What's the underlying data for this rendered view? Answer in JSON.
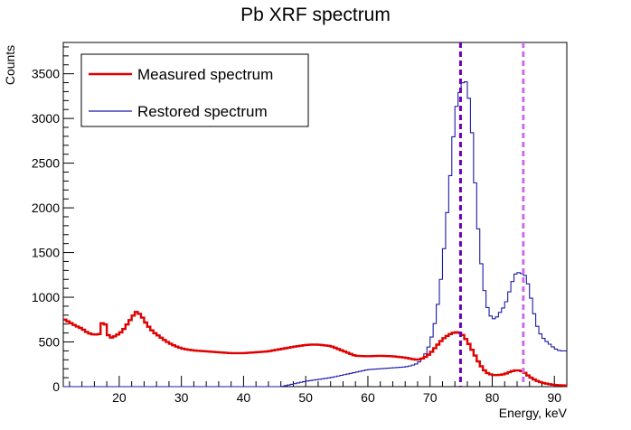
{
  "chart_data": {
    "type": "line",
    "title": "Pb XRF spectrum",
    "xlabel": "Energy, keV",
    "ylabel": "Counts",
    "xlim": [
      11,
      92
    ],
    "ylim": [
      0,
      3850
    ],
    "xticks": [
      20,
      30,
      40,
      50,
      60,
      70,
      80,
      90
    ],
    "yticks": [
      0,
      500,
      1000,
      1500,
      2000,
      2500,
      3000,
      3500
    ],
    "grid": false,
    "legend_position": "top-left",
    "series": [
      {
        "name": "Measured spectrum",
        "color": "#e00000",
        "style": "step-thick",
        "points": [
          [
            11,
            760
          ],
          [
            12,
            720
          ],
          [
            13,
            680
          ],
          [
            14,
            650
          ],
          [
            15,
            600
          ],
          [
            16,
            580
          ],
          [
            17,
            590
          ],
          [
            17.4,
            780
          ],
          [
            17.9,
            660
          ],
          [
            18.4,
            540
          ],
          [
            19.5,
            570
          ],
          [
            20.5,
            620
          ],
          [
            21.5,
            720
          ],
          [
            22.3,
            800
          ],
          [
            22.8,
            840
          ],
          [
            23.5,
            800
          ],
          [
            24.5,
            690
          ],
          [
            25.5,
            610
          ],
          [
            26.5,
            560
          ],
          [
            27.5,
            510
          ],
          [
            28.5,
            470
          ],
          [
            29.5,
            440
          ],
          [
            30.5,
            420
          ],
          [
            32,
            405
          ],
          [
            34,
            395
          ],
          [
            36,
            385
          ],
          [
            38,
            375
          ],
          [
            40,
            375
          ],
          [
            42,
            385
          ],
          [
            44,
            395
          ],
          [
            46,
            420
          ],
          [
            48,
            445
          ],
          [
            50,
            465
          ],
          [
            51,
            470
          ],
          [
            52,
            470
          ],
          [
            54,
            455
          ],
          [
            56,
            400
          ],
          [
            58,
            345
          ],
          [
            60,
            340
          ],
          [
            62,
            345
          ],
          [
            64,
            340
          ],
          [
            66,
            325
          ],
          [
            67,
            310
          ],
          [
            68,
            300
          ],
          [
            69,
            320
          ],
          [
            70,
            370
          ],
          [
            71,
            450
          ],
          [
            72,
            530
          ],
          [
            73,
            580
          ],
          [
            74,
            610
          ],
          [
            75,
            600
          ],
          [
            76,
            510
          ],
          [
            77,
            380
          ],
          [
            78,
            250
          ],
          [
            79,
            160
          ],
          [
            80,
            130
          ],
          [
            81,
            130
          ],
          [
            82,
            140
          ],
          [
            83,
            170
          ],
          [
            84,
            185
          ],
          [
            85,
            170
          ],
          [
            86,
            110
          ],
          [
            87,
            70
          ],
          [
            88,
            45
          ],
          [
            89,
            30
          ],
          [
            90,
            20
          ],
          [
            91,
            15
          ],
          [
            92,
            12
          ]
        ]
      },
      {
        "name": "Restored spectrum",
        "color": "#1a1aaa",
        "style": "step-thin",
        "points": [
          [
            11,
            0
          ],
          [
            46,
            0
          ],
          [
            48,
            30
          ],
          [
            50,
            60
          ],
          [
            52,
            80
          ],
          [
            54,
            100
          ],
          [
            56,
            130
          ],
          [
            58,
            160
          ],
          [
            60,
            190
          ],
          [
            62,
            200
          ],
          [
            64,
            210
          ],
          [
            66,
            220
          ],
          [
            67,
            235
          ],
          [
            68,
            260
          ],
          [
            69,
            330
          ],
          [
            70,
            480
          ],
          [
            71,
            780
          ],
          [
            72,
            1340
          ],
          [
            73,
            2150
          ],
          [
            73.5,
            2570
          ],
          [
            74,
            3020
          ],
          [
            74.5,
            3250
          ],
          [
            75,
            3330
          ],
          [
            75.5,
            3470
          ],
          [
            76,
            3350
          ],
          [
            76.5,
            3100
          ],
          [
            77,
            2580
          ],
          [
            77.5,
            1980
          ],
          [
            78,
            1550
          ],
          [
            78.5,
            1200
          ],
          [
            79,
            950
          ],
          [
            79.5,
            820
          ],
          [
            80,
            760
          ],
          [
            80.5,
            760
          ],
          [
            81,
            800
          ],
          [
            81.5,
            860
          ],
          [
            82,
            900
          ],
          [
            82.5,
            1000
          ],
          [
            83,
            1120
          ],
          [
            83.5,
            1230
          ],
          [
            84,
            1290
          ],
          [
            84.5,
            1260
          ],
          [
            85,
            1270
          ],
          [
            85.5,
            1220
          ],
          [
            86,
            1080
          ],
          [
            86.5,
            900
          ],
          [
            87,
            730
          ],
          [
            87.5,
            620
          ],
          [
            88,
            560
          ],
          [
            88.5,
            520
          ],
          [
            89,
            490
          ],
          [
            89.5,
            460
          ],
          [
            90,
            430
          ],
          [
            90.5,
            410
          ],
          [
            91,
            400
          ],
          [
            92,
            400
          ]
        ]
      }
    ],
    "vertical_lines": [
      {
        "name": "dashed line 1",
        "x": 74.9,
        "color": "#6a00b8"
      },
      {
        "name": "dashed line 2",
        "x": 85.0,
        "color": "#cc6ee6"
      }
    ]
  }
}
